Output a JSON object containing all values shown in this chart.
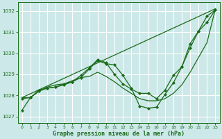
{
  "xlabel": "Graphe pression niveau de la mer (hPa)",
  "bg_color": "#cce8e8",
  "grid_color": "#ffffff",
  "line_color": "#1a6b1a",
  "xlim": [
    -0.5,
    23.5
  ],
  "ylim": [
    1026.7,
    1032.4
  ],
  "yticks": [
    1027,
    1028,
    1029,
    1030,
    1031,
    1032
  ],
  "xticks": [
    0,
    1,
    2,
    3,
    4,
    5,
    6,
    7,
    8,
    9,
    10,
    11,
    12,
    13,
    14,
    15,
    16,
    17,
    18,
    19,
    20,
    21,
    22,
    23
  ],
  "series1": {
    "x": [
      0,
      23
    ],
    "y": [
      1027.9,
      1032.1
    ]
  },
  "series2": {
    "x": [
      0,
      1,
      2,
      3,
      4,
      5,
      6,
      7,
      8,
      9,
      10,
      11,
      12,
      13,
      14,
      15,
      16,
      17,
      18,
      19,
      20,
      21,
      22,
      23
    ],
    "y": [
      1027.9,
      1027.9,
      1028.2,
      1028.4,
      1028.5,
      1028.55,
      1028.7,
      1028.85,
      1028.9,
      1029.1,
      1028.9,
      1028.65,
      1028.35,
      1028.1,
      1027.85,
      1027.75,
      1027.75,
      1027.85,
      1028.1,
      1028.5,
      1029.1,
      1029.8,
      1030.5,
      1032.1
    ]
  },
  "series3": {
    "x": [
      0,
      1,
      2,
      3,
      4,
      5,
      6,
      7,
      8,
      9,
      10,
      11,
      12,
      13,
      14,
      15,
      16,
      17,
      18,
      19,
      20,
      21,
      22,
      23
    ],
    "y": [
      1027.3,
      1027.9,
      1028.2,
      1028.35,
      1028.4,
      1028.55,
      1028.65,
      1028.85,
      1029.25,
      1029.65,
      1029.5,
      1029.45,
      1028.95,
      1028.35,
      1027.5,
      1027.4,
      1027.45,
      1028.05,
      1028.6,
      1029.35,
      1030.45,
      1031.05,
      1031.75,
      1032.05
    ]
  },
  "series4": {
    "x": [
      0,
      1,
      2,
      3,
      4,
      5,
      6,
      7,
      8,
      9,
      10,
      11,
      12,
      13,
      14,
      15,
      16,
      17,
      18,
      19,
      20,
      21,
      22,
      23
    ],
    "y": [
      1027.85,
      1027.9,
      1028.25,
      1028.35,
      1028.4,
      1028.5,
      1028.65,
      1028.95,
      1029.3,
      1029.7,
      1029.55,
      1029.0,
      1028.55,
      1028.3,
      1028.1,
      1028.1,
      1027.85,
      1028.25,
      1028.95,
      1029.35,
      1030.25,
      1031.05,
      1031.45,
      1032.05
    ]
  }
}
